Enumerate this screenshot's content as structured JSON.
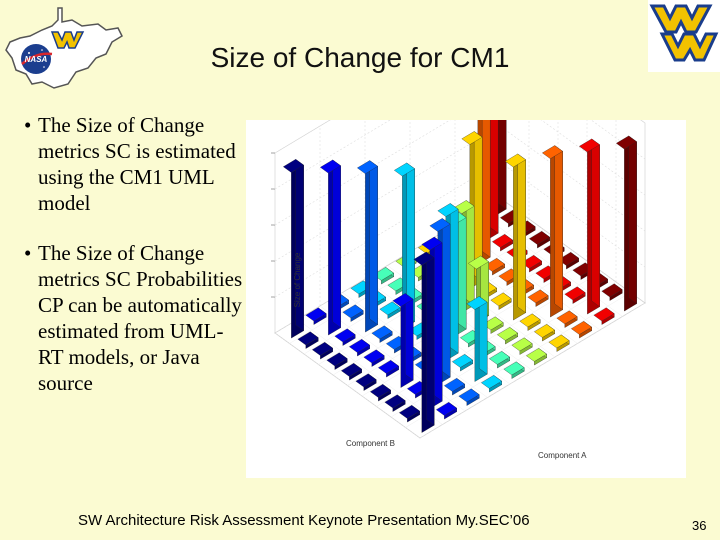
{
  "slide": {
    "title": "Size of Change for CM1",
    "bullets": [
      "The  Size of Change metrics SC is estimated using the CM1 UML model",
      "The  Size of Change metrics SC Probabilities CP can be automatically estimated from UML-RT models, or Java source"
    ],
    "footer": "SW Architecture Risk Assessment Keynote Presentation My.SEC’06",
    "page_number": "36",
    "logo_left_text": "NASA",
    "bullet_glyph": "•"
  },
  "colors": {
    "background": "#fbfbd2",
    "wvu_gold": "#f2c200",
    "wvu_blue": "#1a3d8c",
    "nasa_blue": "#1b3e8f"
  },
  "chart_data": {
    "type": "bar3d",
    "xlabel": "Component A",
    "ylabel": "Component B",
    "zlabel": "Size of Change",
    "categories": [
      "",
      "",
      "",
      "",
      "",
      "",
      "",
      "",
      "",
      ""
    ],
    "grid": true,
    "colormap": "jet",
    "values_matrix": [
      [
        0.93,
        0.02,
        0.02,
        0.02,
        0.02,
        0.02,
        0.02,
        0.02,
        0.02,
        0.9
      ],
      [
        0.02,
        0.88,
        0.02,
        0.4,
        0.02,
        0.02,
        0.02,
        0.02,
        0.9,
        0.02
      ],
      [
        0.02,
        0.02,
        0.85,
        0.02,
        0.02,
        0.02,
        0.02,
        0.88,
        0.02,
        0.02
      ],
      [
        0.02,
        0.45,
        0.02,
        0.8,
        0.02,
        0.02,
        0.85,
        0.02,
        0.02,
        0.02
      ],
      [
        0.02,
        0.02,
        0.02,
        0.02,
        0.62,
        0.3,
        0.02,
        0.02,
        0.02,
        0.02
      ],
      [
        0.02,
        0.02,
        0.02,
        0.02,
        0.3,
        0.55,
        0.02,
        0.02,
        0.02,
        0.02
      ],
      [
        0.02,
        0.02,
        0.02,
        0.85,
        0.02,
        0.02,
        0.8,
        0.02,
        0.02,
        0.02
      ],
      [
        0.02,
        0.02,
        0.88,
        0.02,
        0.02,
        0.02,
        0.02,
        0.85,
        0.02,
        0.02
      ],
      [
        0.02,
        0.9,
        0.02,
        0.02,
        0.02,
        0.02,
        0.02,
        0.02,
        0.88,
        0.02
      ],
      [
        0.92,
        0.02,
        0.02,
        0.02,
        0.02,
        0.02,
        0.02,
        0.02,
        0.02,
        0.93
      ]
    ]
  }
}
